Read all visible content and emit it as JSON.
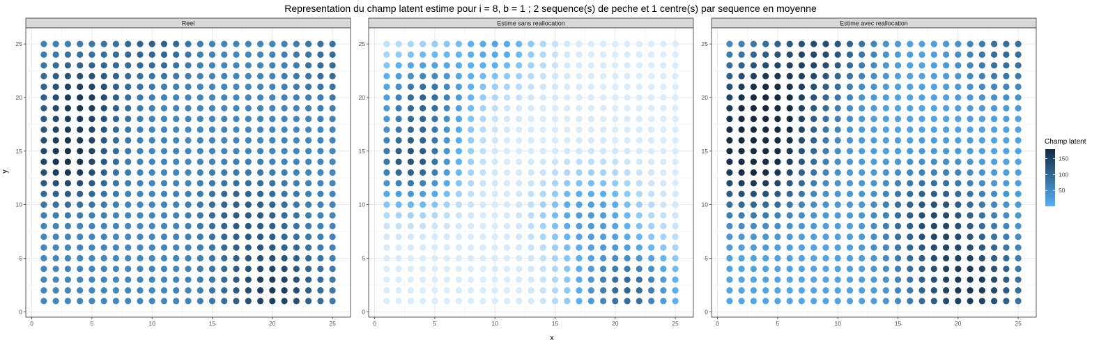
{
  "chart_data": {
    "type": "scatter",
    "title": "Representation du champ latent estime pour i = 8, b = 1 ; 2 sequence(s) de peche et 1 centre(s) par sequence en moyenne",
    "xlabel": "x",
    "ylabel": "y",
    "xlim": [
      -0.5,
      26.5
    ],
    "ylim": [
      -0.5,
      26.5
    ],
    "x_ticks": [
      0,
      5,
      10,
      15,
      20,
      25
    ],
    "y_ticks": [
      0,
      5,
      10,
      15,
      20,
      25
    ],
    "grid": true,
    "grid_points": {
      "x": [
        1,
        25
      ],
      "y": [
        1,
        25
      ],
      "step": 1
    },
    "legend": {
      "title": "Champ latent",
      "position": "right",
      "ticks": [
        50,
        100,
        150
      ],
      "range": [
        0,
        180
      ],
      "color_low": "#56B1F7",
      "color_high": "#132B43"
    },
    "colors": {
      "faint_low": "#EAF4FD"
    },
    "panels": [
      {
        "strip": "Reel",
        "hotspots": [
          {
            "x": 4,
            "y": 20,
            "amp": 100,
            "spread": 2.5
          },
          {
            "x": 3,
            "y": 14,
            "amp": 115,
            "spread": 2.5
          },
          {
            "x": 20,
            "y": 2,
            "amp": 100,
            "spread": 2.8
          },
          {
            "x": 18,
            "y": 9,
            "amp": 60,
            "spread": 2.8
          },
          {
            "x": 10,
            "y": 25,
            "amp": 50,
            "spread": 2.5
          },
          {
            "x": 25,
            "y": 23,
            "amp": 40,
            "spread": 2.5
          }
        ],
        "baseline": 55
      },
      {
        "strip": "Estime sans reallocation",
        "hotspots": [
          {
            "x": 4,
            "y": 20,
            "amp": 110,
            "spread": 2.5
          },
          {
            "x": 3,
            "y": 14,
            "amp": 130,
            "spread": 2.5
          },
          {
            "x": 21,
            "y": 2,
            "amp": 115,
            "spread": 2.8
          },
          {
            "x": 18,
            "y": 9,
            "amp": 60,
            "spread": 2.6
          },
          {
            "x": 10,
            "y": 25,
            "amp": 50,
            "spread": 2.5
          }
        ],
        "baseline": 5
      },
      {
        "strip": "Estime avec reallocation",
        "hotspots": [
          {
            "x": 4,
            "y": 20,
            "amp": 140,
            "spread": 3.5
          },
          {
            "x": 3,
            "y": 14,
            "amp": 160,
            "spread": 3.5
          },
          {
            "x": 21,
            "y": 2,
            "amp": 140,
            "spread": 3.5
          },
          {
            "x": 18,
            "y": 9,
            "amp": 110,
            "spread": 3.2
          },
          {
            "x": 9,
            "y": 25,
            "amp": 100,
            "spread": 3.0
          },
          {
            "x": 24,
            "y": 24,
            "amp": 80,
            "spread": 2.8
          }
        ],
        "baseline": 15
      }
    ]
  }
}
